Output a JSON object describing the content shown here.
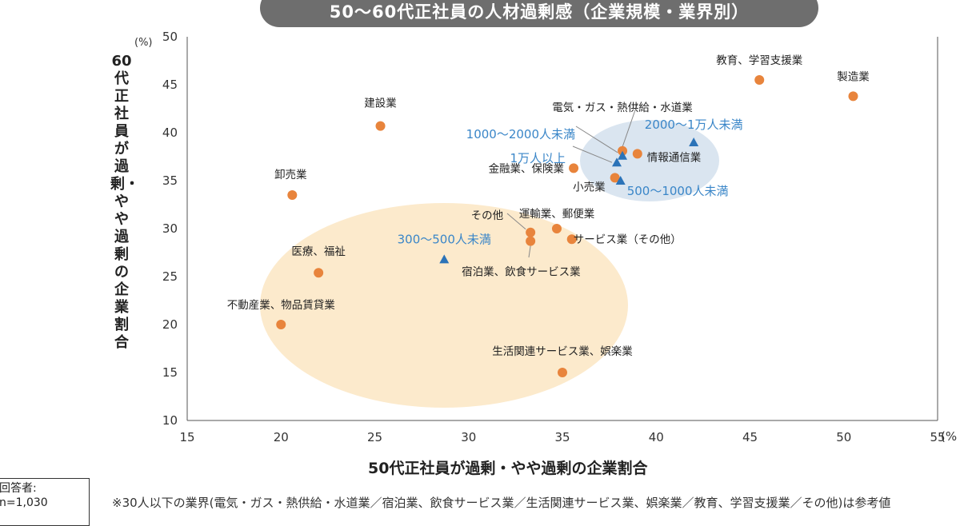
{
  "chart_data": {
    "type": "scatter",
    "title": "50～60代正社員の人材過剰感（企業規模・業界別）",
    "xlabel": "50代正社員が過剰・やや過剰の企業割合",
    "ylabel": "60代正社員が過剰・やや過剰の企業割合",
    "x_unit": "(%",
    "y_unit": "(%)",
    "xlim": [
      15,
      55
    ],
    "ylim": [
      10,
      50
    ],
    "x_ticks": [
      "15",
      "20",
      "25",
      "30",
      "35",
      "40",
      "45",
      "50",
      "55"
    ],
    "y_ticks": [
      "10",
      "15",
      "20",
      "25",
      "30",
      "35",
      "40",
      "45",
      "50"
    ],
    "grid": false,
    "colors": {
      "industry": "#e8843c",
      "size": "#2b73b8",
      "industry_label": "#222222",
      "size_label": "#3a86c8"
    },
    "industries": [
      {
        "label": "教育、学習支援業",
        "x": 45.5,
        "y": 45.5
      },
      {
        "label": "製造業",
        "x": 50.5,
        "y": 43.8
      },
      {
        "label": "建設業",
        "x": 25.3,
        "y": 40.7
      },
      {
        "label": "電気・ガス・熱供給・水道業",
        "x": 38.2,
        "y": 38.1
      },
      {
        "label": "情報通信業",
        "x": 39.0,
        "y": 37.8
      },
      {
        "label": "金融業、保険業",
        "x": 35.6,
        "y": 36.3
      },
      {
        "label": "小売業",
        "x": 37.8,
        "y": 35.3
      },
      {
        "label": "卸売業",
        "x": 20.6,
        "y": 33.5
      },
      {
        "label": "運輸業、郵便業",
        "x": 34.7,
        "y": 30.0
      },
      {
        "label": "その他",
        "x": 33.3,
        "y": 29.6
      },
      {
        "label": "サービス業（その他）",
        "x": 35.5,
        "y": 28.9
      },
      {
        "label": "宿泊業、飲食サービス業",
        "x": 33.3,
        "y": 28.7
      },
      {
        "label": "医療、福祉",
        "x": 22.0,
        "y": 25.4
      },
      {
        "label": "不動産業、物品賃貸業",
        "x": 20.0,
        "y": 20.0
      },
      {
        "label": "生活関連サービス業、娯楽業",
        "x": 35.0,
        "y": 15.0
      }
    ],
    "company_sizes": [
      {
        "label": "2000～1万人未満",
        "x": 42.0,
        "y": 39.0
      },
      {
        "label": "1000～2000人未満",
        "x": 38.2,
        "y": 37.6
      },
      {
        "label": "1万人以上",
        "x": 37.9,
        "y": 36.9
      },
      {
        "label": "500～1000人未満",
        "x": 38.1,
        "y": 35.0
      },
      {
        "label": "300～500人未満",
        "x": 28.7,
        "y": 26.8
      }
    ]
  },
  "source_box": {
    "line1": "回答者:",
    "line2": "n=1,030"
  },
  "footnote": "※30人以下の業界(電気・ガス・熱供給・水道業／宿泊業、飲食サービス業／生活関連サービス業、娯楽業／教育、学習支援業／その他)は参考値"
}
